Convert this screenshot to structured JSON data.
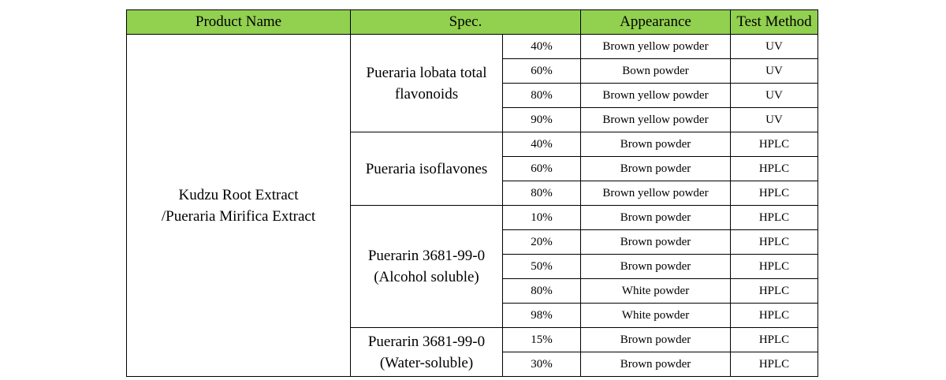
{
  "headers": {
    "product_name": "Product Name",
    "spec": "Spec.",
    "appearance": "Appearance",
    "test_method": "Test Method"
  },
  "product": {
    "name": "Kudzu Root Extract\n/Pueraria Mirifica Extract"
  },
  "groups": [
    {
      "name": "Pueraria lobata total\nflavonoids",
      "rows": [
        {
          "spec": "40%",
          "appearance": "Brown yellow powder",
          "method": "UV"
        },
        {
          "spec": "60%",
          "appearance": "Bown powder",
          "method": "UV"
        },
        {
          "spec": "80%",
          "appearance": "Brown yellow powder",
          "method": "UV"
        },
        {
          "spec": "90%",
          "appearance": "Brown yellow powder",
          "method": "UV"
        }
      ]
    },
    {
      "name": "Pueraria isoflavones",
      "rows": [
        {
          "spec": "40%",
          "appearance": "Brown powder",
          "method": "HPLC"
        },
        {
          "spec": "60%",
          "appearance": "Brown powder",
          "method": "HPLC"
        },
        {
          "spec": "80%",
          "appearance": "Brown yellow powder",
          "method": "HPLC"
        }
      ]
    },
    {
      "name": "Puerarin 3681-99-0\n(Alcohol soluble)",
      "rows": [
        {
          "spec": "10%",
          "appearance": "Brown powder",
          "method": "HPLC"
        },
        {
          "spec": "20%",
          "appearance": "Brown powder",
          "method": "HPLC"
        },
        {
          "spec": "50%",
          "appearance": "Brown powder",
          "method": "HPLC"
        },
        {
          "spec": "80%",
          "appearance": "White powder",
          "method": "HPLC"
        },
        {
          "spec": "98%",
          "appearance": "White powder",
          "method": "HPLC"
        }
      ]
    },
    {
      "name": "Puerarin 3681-99-0\n(Water-soluble)",
      "rows": [
        {
          "spec": "15%",
          "appearance": "Brown powder",
          "method": "HPLC"
        },
        {
          "spec": "30%",
          "appearance": "Brown powder",
          "method": "HPLC"
        }
      ]
    }
  ],
  "colors": {
    "header_background": "#92d050",
    "border": "#000000"
  }
}
